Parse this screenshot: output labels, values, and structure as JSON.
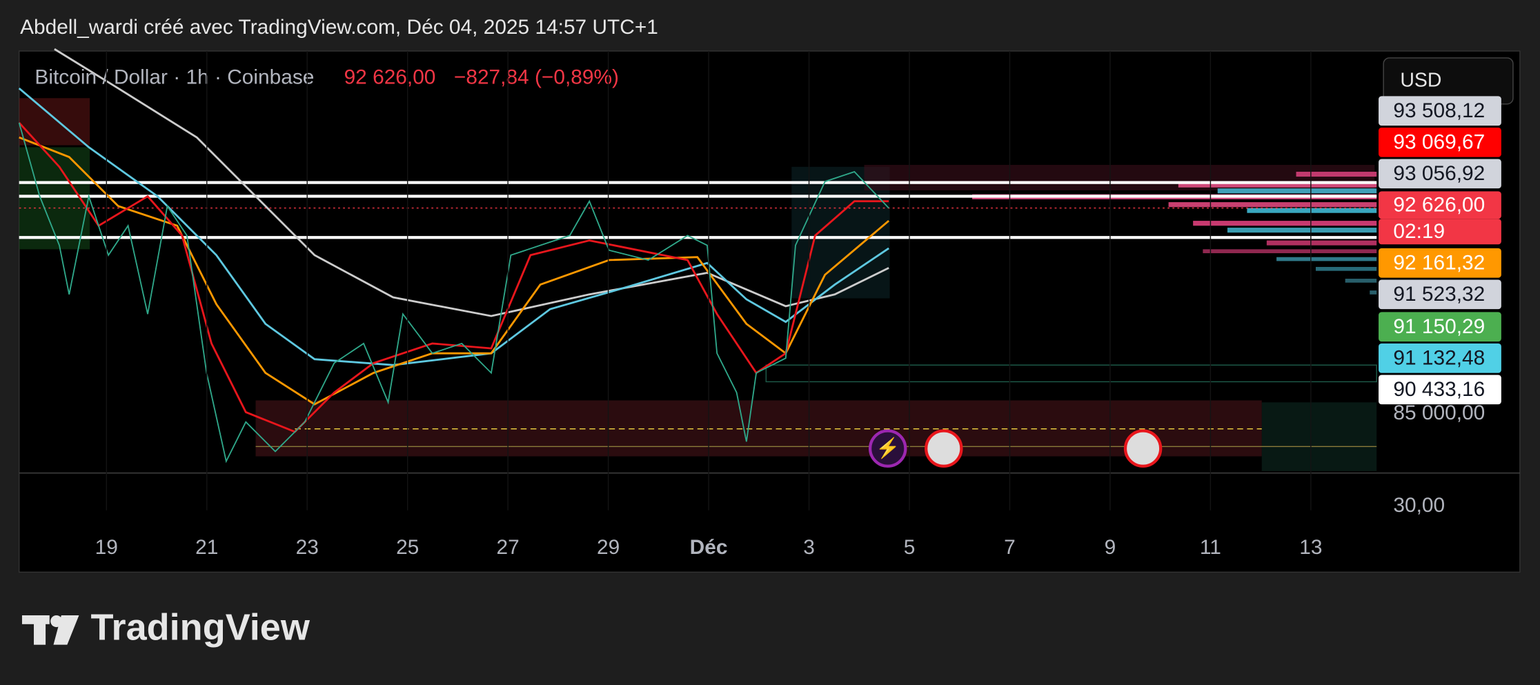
{
  "header": {
    "title": "Abdell_wardi créé avec TradingView.com, Déc 04, 2025 14:57 UTC+1"
  },
  "legend": {
    "symbol": "Bitcoin / Dollar · 1h · Coinbase",
    "price": "92 626,00",
    "change": "−827,84 (−0,89%)"
  },
  "currency": "USD",
  "price_labels": [
    "93 508,12",
    "93 069,67",
    "93 056,92",
    "92 626,00",
    "02:19",
    "92 161,32",
    "91 523,32",
    "91 150,29",
    "91 132,48",
    "90 433,16",
    "85 000,00",
    "30,00"
  ],
  "time_labels": [
    "19",
    "21",
    "23",
    "25",
    "27",
    "29",
    "Déc",
    "3",
    "5",
    "7",
    "9",
    "11",
    "13"
  ],
  "logo": "TradingView"
}
